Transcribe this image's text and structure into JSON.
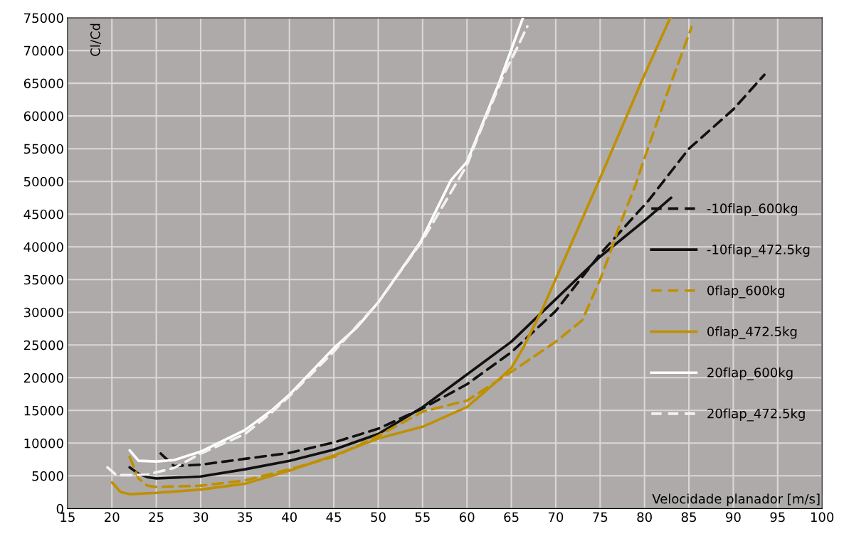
{
  "chart_data": {
    "type": "line",
    "xlabel": "Velocidade planador [m/s]",
    "ylabel": "Cl/Cd",
    "xlim": [
      15,
      100
    ],
    "xticks": [
      15,
      20,
      25,
      30,
      35,
      40,
      45,
      50,
      55,
      60,
      65,
      70,
      75,
      80,
      85,
      90,
      95,
      100
    ],
    "ylim": [
      0,
      75000
    ],
    "yticks": [
      0,
      5000,
      10000,
      15000,
      20000,
      25000,
      30000,
      35000,
      40000,
      45000,
      50000,
      55000,
      60000,
      65000,
      70000,
      75000
    ],
    "grid": true,
    "legend": "right",
    "marker": "none",
    "series": [
      {
        "name": "-10flap_600kg",
        "color": "#111111",
        "line_style": "dashed",
        "x": [
          25.5,
          27,
          30,
          35,
          40,
          45,
          50,
          55,
          60,
          65,
          70,
          75,
          80.4,
          85,
          90,
          93.5
        ],
        "values": [
          8400,
          6500,
          6700,
          7600,
          8500,
          10100,
          12200,
          15300,
          19000,
          23900,
          30200,
          38900,
          47000,
          55000,
          61000,
          66300
        ]
      },
      {
        "name": "-10flap_472.5kg",
        "color": "#111111",
        "line_style": "solid",
        "x": [
          22,
          23,
          24,
          25,
          30,
          35,
          40,
          45,
          50,
          55,
          60,
          65,
          70,
          75,
          80,
          83
        ],
        "values": [
          6300,
          5300,
          4800,
          4600,
          4900,
          6000,
          7300,
          9000,
          11400,
          15500,
          20500,
          25500,
          32000,
          38500,
          44000,
          47500
        ]
      },
      {
        "name": "0flap_600kg",
        "color": "#bf9000",
        "line_style": "dashed",
        "x": [
          22,
          23,
          24,
          25,
          30,
          35,
          40,
          45,
          50,
          55,
          60,
          65,
          70,
          73,
          75,
          76,
          77,
          79,
          79.7,
          82.3,
          85.3
        ],
        "values": [
          7900,
          4600,
          3500,
          3300,
          3500,
          4300,
          6000,
          7900,
          11100,
          14800,
          16500,
          20900,
          25500,
          28800,
          35000,
          38600,
          42600,
          49500,
          52400,
          62500,
          73600
        ]
      },
      {
        "name": "0flap_472.5kg",
        "color": "#bf9000",
        "line_style": "solid",
        "x": [
          20,
          21,
          22,
          25,
          30,
          35,
          40,
          45,
          50,
          55,
          60,
          63,
          65,
          66.3,
          68.4,
          70.3,
          75,
          79.7,
          82.9
        ],
        "values": [
          4000,
          2500,
          2200,
          2400,
          2900,
          3800,
          5800,
          8100,
          10700,
          12500,
          15500,
          19000,
          21500,
          24500,
          30200,
          36000,
          50500,
          65400,
          75000
        ]
      },
      {
        "name": "20flap_600kg",
        "color": "#ffffff",
        "line_style": "solid",
        "x": [
          22,
          23,
          25,
          27,
          30,
          35,
          38,
          40,
          45,
          47.6,
          50,
          54.8,
          58.2,
          60,
          63.6,
          66.3
        ],
        "values": [
          8900,
          7300,
          7200,
          7400,
          8700,
          12000,
          15000,
          17400,
          24500,
          27700,
          31500,
          40800,
          50200,
          53000,
          65000,
          75000
        ]
      },
      {
        "name": "20flap_472.5kg",
        "color": "#f2f2f2",
        "line_style": "dashed",
        "x": [
          19.5,
          20.5,
          22,
          24,
          27,
          30,
          35,
          38,
          40,
          45,
          50,
          55,
          60,
          61.2,
          64.2,
          65.5,
          66.8
        ],
        "values": [
          6300,
          5100,
          5100,
          5200,
          6200,
          8400,
          11400,
          14700,
          17200,
          24000,
          31500,
          41000,
          52500,
          56700,
          66500,
          70000,
          73700
        ]
      }
    ]
  }
}
